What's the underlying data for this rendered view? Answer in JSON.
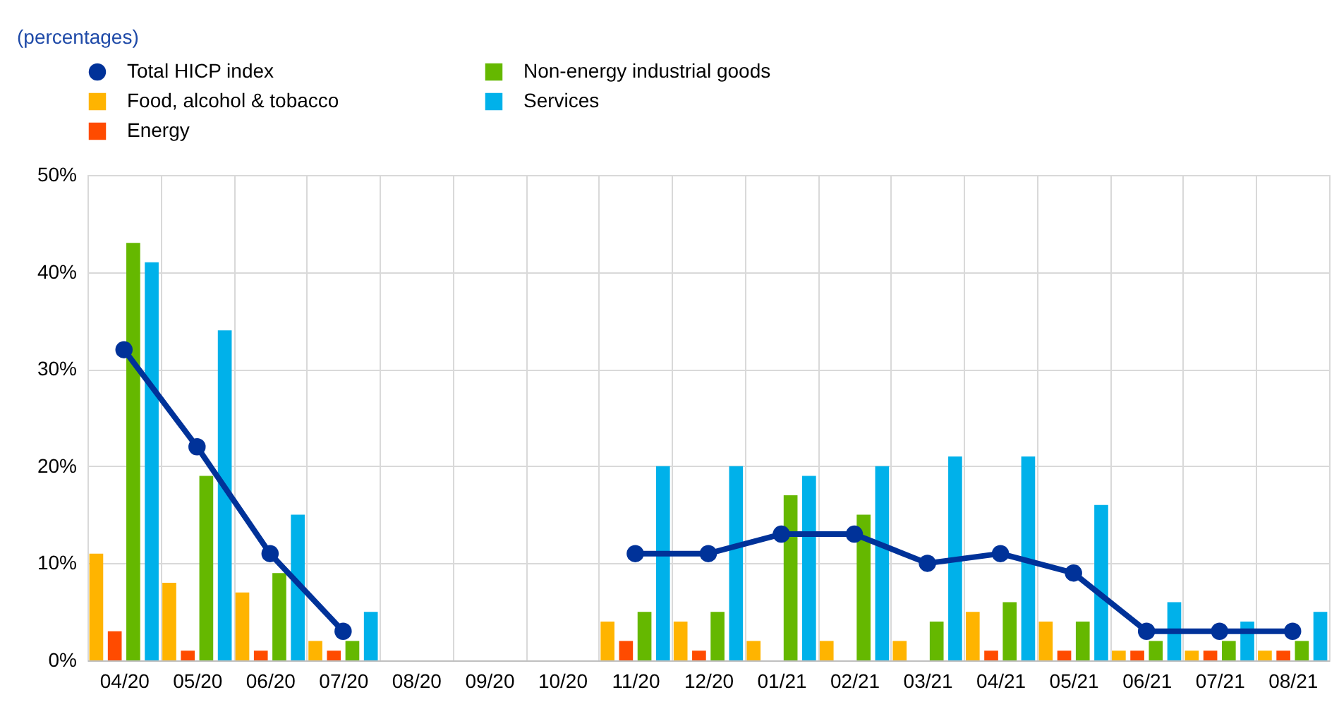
{
  "chart_data": {
    "type": "bar",
    "title": "(percentages)",
    "categories": [
      "04/20",
      "05/20",
      "06/20",
      "07/20",
      "08/20",
      "09/20",
      "10/20",
      "11/20",
      "12/20",
      "01/21",
      "02/21",
      "03/21",
      "04/21",
      "05/21",
      "06/21",
      "07/21",
      "08/21"
    ],
    "series": [
      {
        "name": "Total HICP index",
        "type": "line",
        "color": "#003299",
        "values": [
          32,
          22,
          11,
          3,
          null,
          null,
          null,
          11,
          11,
          13,
          13,
          10,
          11,
          9,
          3,
          3,
          3
        ]
      },
      {
        "name": "Food, alcohol & tobacco",
        "color": "#ffb400",
        "values": [
          11,
          8,
          7,
          2,
          null,
          null,
          null,
          4,
          4,
          2,
          2,
          2,
          5,
          4,
          1,
          1,
          1
        ]
      },
      {
        "name": "Energy",
        "color": "#ff4b00",
        "values": [
          3,
          1,
          1,
          1,
          null,
          null,
          null,
          2,
          1,
          null,
          null,
          null,
          1,
          1,
          1,
          1,
          1
        ]
      },
      {
        "name": "Non-energy industrial goods",
        "color": "#65b800",
        "values": [
          43,
          19,
          9,
          2,
          null,
          null,
          null,
          5,
          5,
          17,
          15,
          4,
          6,
          4,
          2,
          2,
          2
        ]
      },
      {
        "name": "Services",
        "color": "#00b1ea",
        "values": [
          41,
          34,
          15,
          5,
          null,
          null,
          null,
          20,
          20,
          19,
          20,
          21,
          21,
          16,
          6,
          4,
          5
        ]
      }
    ],
    "ylim": [
      0,
      50
    ],
    "yticks": [
      {
        "value": 0,
        "label": "0%"
      },
      {
        "value": 10,
        "label": "10%"
      },
      {
        "value": 20,
        "label": "20%"
      },
      {
        "value": 30,
        "label": "30%"
      },
      {
        "value": 40,
        "label": "40%"
      },
      {
        "value": 50,
        "label": "50%"
      }
    ],
    "grid": true,
    "legend": "top left",
    "marker": "circle"
  }
}
